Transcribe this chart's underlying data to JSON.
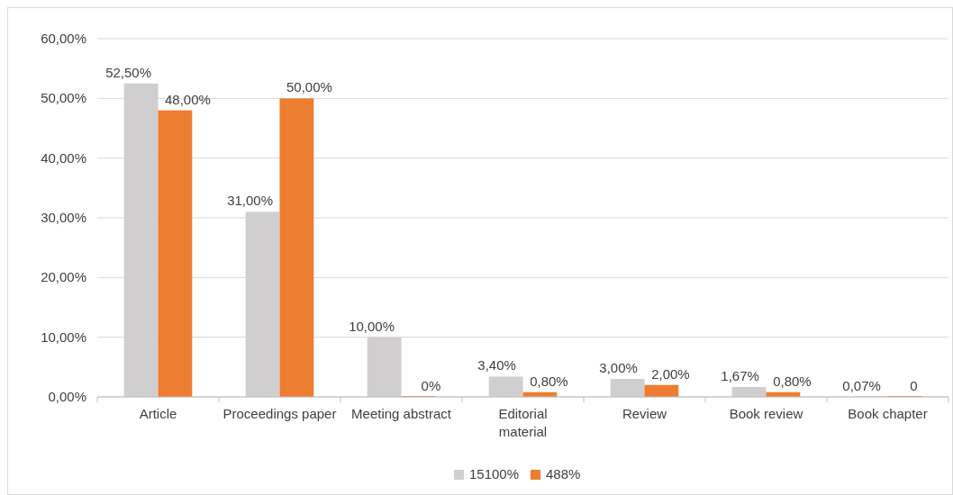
{
  "chart_data": {
    "type": "bar",
    "categories": [
      "Article",
      "Proceedings paper",
      "Meeting abstract",
      "Editorial material",
      "Review",
      "Book review",
      "Book chapter"
    ],
    "series": [
      {
        "name": "15100%",
        "color": "#d0cece",
        "values": [
          52.5,
          31,
          10,
          3.4,
          3,
          1.67,
          0.07
        ],
        "value_labels": [
          "52,50%",
          "31,00%",
          "10,00%",
          "3,40%",
          "3,00%",
          "1,67%",
          "0,07%"
        ]
      },
      {
        "name": "488%",
        "color": "#ed7d31",
        "values": [
          48,
          50,
          0,
          0.8,
          2,
          0.8,
          0
        ],
        "value_labels": [
          "48,00%",
          "50,00%",
          "0%",
          "0,80%",
          "2,00%",
          "0,80%",
          "0"
        ]
      }
    ],
    "ylim": [
      0,
      60
    ],
    "yticks": [
      {
        "value": 0,
        "label": "0,00%"
      },
      {
        "value": 10,
        "label": "10,00%"
      },
      {
        "value": 20,
        "label": "20,00%"
      },
      {
        "value": 30,
        "label": "30,00%"
      },
      {
        "value": 40,
        "label": "40,00%"
      },
      {
        "value": 50,
        "label": "50,00%"
      },
      {
        "value": 60,
        "label": "60,00%"
      }
    ],
    "grid": "y",
    "legend": "bottom"
  }
}
